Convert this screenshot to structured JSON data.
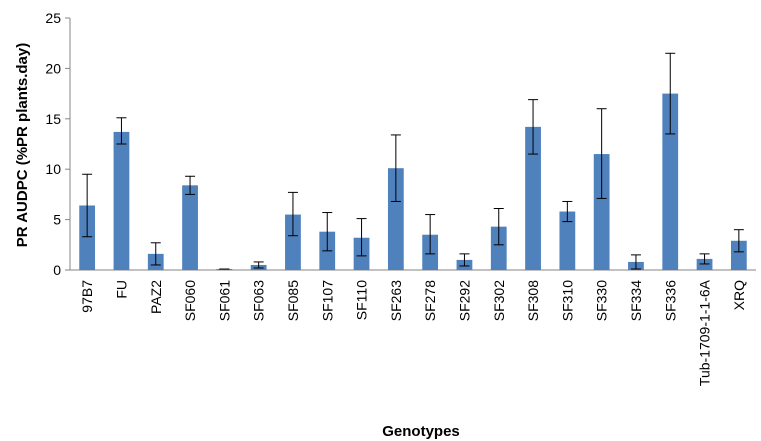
{
  "chart_data": {
    "type": "bar",
    "title": "",
    "xlabel": "Genotypes",
    "ylabel": "PR AUDPC (%PR plants.day)",
    "ylim": [
      0,
      25
    ],
    "yticks": [
      0,
      5,
      10,
      15,
      20,
      25
    ],
    "grid": false,
    "legend": "none",
    "categories": [
      "97B7",
      "FU",
      "PAZ2",
      "SF060",
      "SF061",
      "SF063",
      "SF085",
      "SF107",
      "SF110",
      "SF263",
      "SF278",
      "SF292",
      "SF302",
      "SF308",
      "SF310",
      "SF330",
      "SF334",
      "SF336",
      "Tub-1709-1-1-6A",
      "XRQ"
    ],
    "values": [
      6.4,
      13.7,
      1.6,
      8.4,
      0.1,
      0.5,
      5.5,
      3.8,
      3.2,
      10.1,
      3.5,
      1.0,
      4.3,
      14.2,
      5.8,
      11.5,
      0.8,
      17.5,
      1.1,
      2.9
    ],
    "error_low": [
      3.3,
      12.5,
      0.5,
      7.5,
      0.1,
      0.2,
      3.4,
      1.9,
      1.4,
      6.8,
      1.6,
      0.4,
      2.5,
      11.5,
      4.8,
      7.1,
      0.1,
      13.5,
      0.6,
      1.8
    ],
    "error_high": [
      9.5,
      15.1,
      2.7,
      9.3,
      0.1,
      0.8,
      7.7,
      5.7,
      5.1,
      13.4,
      5.5,
      1.6,
      6.1,
      16.9,
      6.8,
      16.0,
      1.5,
      21.5,
      1.6,
      4.0
    ],
    "colors": {
      "bar": "#4f81bd",
      "axis": "#868686",
      "error": "#000000"
    }
  }
}
